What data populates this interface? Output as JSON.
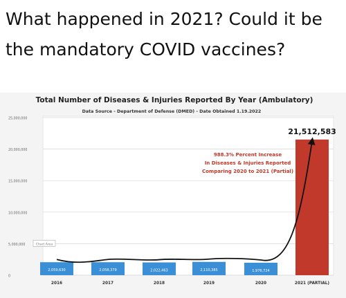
{
  "headline": "What happened in 2021? Could it be the mandatory COVID vaccines?",
  "chart_data": {
    "type": "bar",
    "title": "Total Number of Diseases & Injuries Reported By Year (Ambulatory)",
    "subtitle": "Data Source - Department of Defense (DMED) - Date Obtained 1.19.2022",
    "categories": [
      "2016",
      "2017",
      "2018",
      "2019",
      "2020",
      "2021 (PARTIAL)"
    ],
    "values": [
      2059630,
      2058379,
      2022463,
      2110385,
      1976724,
      21512583
    ],
    "value_labels": [
      "2,059,630",
      "2,058,379",
      "2,022,463",
      "2,110,385",
      "1,976,724",
      "21,512,583"
    ],
    "y_ticks": [
      0,
      5000000,
      10000000,
      15000000,
      20000000,
      25000000
    ],
    "y_tick_labels": [
      "0",
      "5,000,000",
      "10,000,000",
      "15,000,000",
      "20,000,000",
      "25,000,000"
    ],
    "ylim": [
      0,
      25000000
    ],
    "grid": true,
    "bar_colors": [
      "#3a8fd6",
      "#3a8fd6",
      "#3a8fd6",
      "#3a8fd6",
      "#3a8fd6",
      "#c0392b"
    ],
    "trend_color": "#111111",
    "annotation": [
      "988.3% Percent Increase",
      "In Diseases & Injuries Reported",
      "Comparing 2020 to 2021 (Partial)"
    ],
    "annotation_color": "#c0392b",
    "tooltip_label": "Chart Area"
  }
}
